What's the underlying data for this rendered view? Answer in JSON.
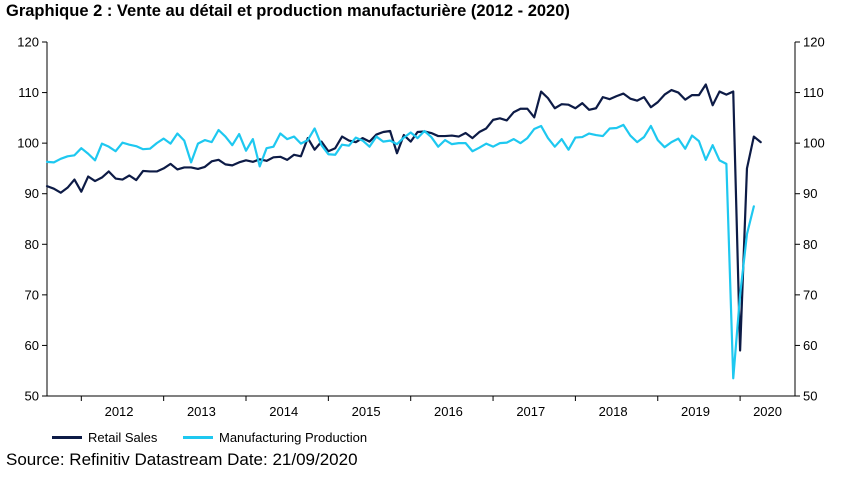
{
  "chart_data": {
    "type": "line",
    "title": "Graphique 2 : Vente au détail et production manufacturière (2012 - 2020)",
    "source": "Source: Refinitiv Datastream Date: 21/09/2020",
    "ylim": [
      50,
      120
    ],
    "yticks": [
      "50",
      "60",
      "70",
      "80",
      "90",
      "100",
      "110",
      "120"
    ],
    "x_start": "2011-08",
    "x_end": "2020-09",
    "year_labels": [
      "2012",
      "2013",
      "2014",
      "2015",
      "2016",
      "2017",
      "2018",
      "2019",
      "2020"
    ],
    "legend_position": "bottom-left",
    "grid": false,
    "x_frequency": "monthly",
    "series": [
      {
        "name": "Retail Sales",
        "color": "#0d1b46",
        "values": [
          91.5,
          91.0,
          90.2,
          91.2,
          92.8,
          90.4,
          93.4,
          92.5,
          93.2,
          94.4,
          93.0,
          92.8,
          93.6,
          92.7,
          94.5,
          94.4,
          94.4,
          95.0,
          95.9,
          94.8,
          95.2,
          95.2,
          94.9,
          95.3,
          96.4,
          96.7,
          95.8,
          95.6,
          96.2,
          96.6,
          96.3,
          96.8,
          96.5,
          97.2,
          97.3,
          96.7,
          97.7,
          97.4,
          101.0,
          98.7,
          100.3,
          98.4,
          99.0,
          101.3,
          100.5,
          100.2,
          101.0,
          100.3,
          101.7,
          102.2,
          102.4,
          98.0,
          101.6,
          100.3,
          102.2,
          102.3,
          102.0,
          101.4,
          101.4,
          101.5,
          101.3,
          102.0,
          101.0,
          102.2,
          102.9,
          104.6,
          104.9,
          104.5,
          106.1,
          106.8,
          106.8,
          105.1,
          110.2,
          108.9,
          106.9,
          107.7,
          107.6,
          106.9,
          107.9,
          106.6,
          106.9,
          109.1,
          108.7,
          109.3,
          109.8,
          108.8,
          108.4,
          109.1,
          107.1,
          108.1,
          109.6,
          110.5,
          110.0,
          108.6,
          109.5,
          109.5,
          111.6,
          107.5,
          110.2,
          109.6,
          110.2,
          59.0,
          95.0,
          101.3,
          100.2
        ]
      },
      {
        "name": "Manufacturing Production",
        "color": "#1ec8f0",
        "values": [
          96.3,
          96.2,
          96.9,
          97.4,
          97.6,
          99.0,
          97.9,
          96.6,
          99.9,
          99.3,
          98.4,
          100.1,
          99.7,
          99.4,
          98.8,
          98.9,
          100.0,
          100.9,
          99.9,
          101.9,
          100.5,
          96.2,
          99.9,
          100.6,
          100.2,
          102.6,
          101.3,
          99.6,
          101.8,
          98.5,
          100.8,
          95.4,
          99.0,
          99.3,
          101.9,
          100.8,
          101.3,
          99.9,
          100.6,
          102.9,
          99.6,
          97.8,
          97.7,
          99.7,
          99.5,
          101.1,
          100.5,
          99.3,
          101.3,
          100.3,
          100.5,
          99.8,
          101.1,
          102.1,
          101.0,
          102.4,
          101.2,
          99.3,
          100.6,
          99.8,
          100.0,
          100.0,
          98.4,
          99.1,
          99.9,
          99.3,
          100.0,
          100.1,
          100.8,
          100.0,
          101.0,
          102.8,
          103.4,
          101.0,
          99.3,
          100.8,
          98.7,
          101.1,
          101.2,
          101.9,
          101.6,
          101.4,
          102.9,
          103.0,
          103.6,
          101.5,
          100.2,
          101.2,
          103.4,
          100.6,
          99.2,
          100.2,
          100.9,
          98.9,
          101.5,
          100.4,
          96.7,
          99.6,
          96.6,
          95.9,
          53.5,
          70.0,
          82.0,
          87.5
        ]
      }
    ]
  }
}
